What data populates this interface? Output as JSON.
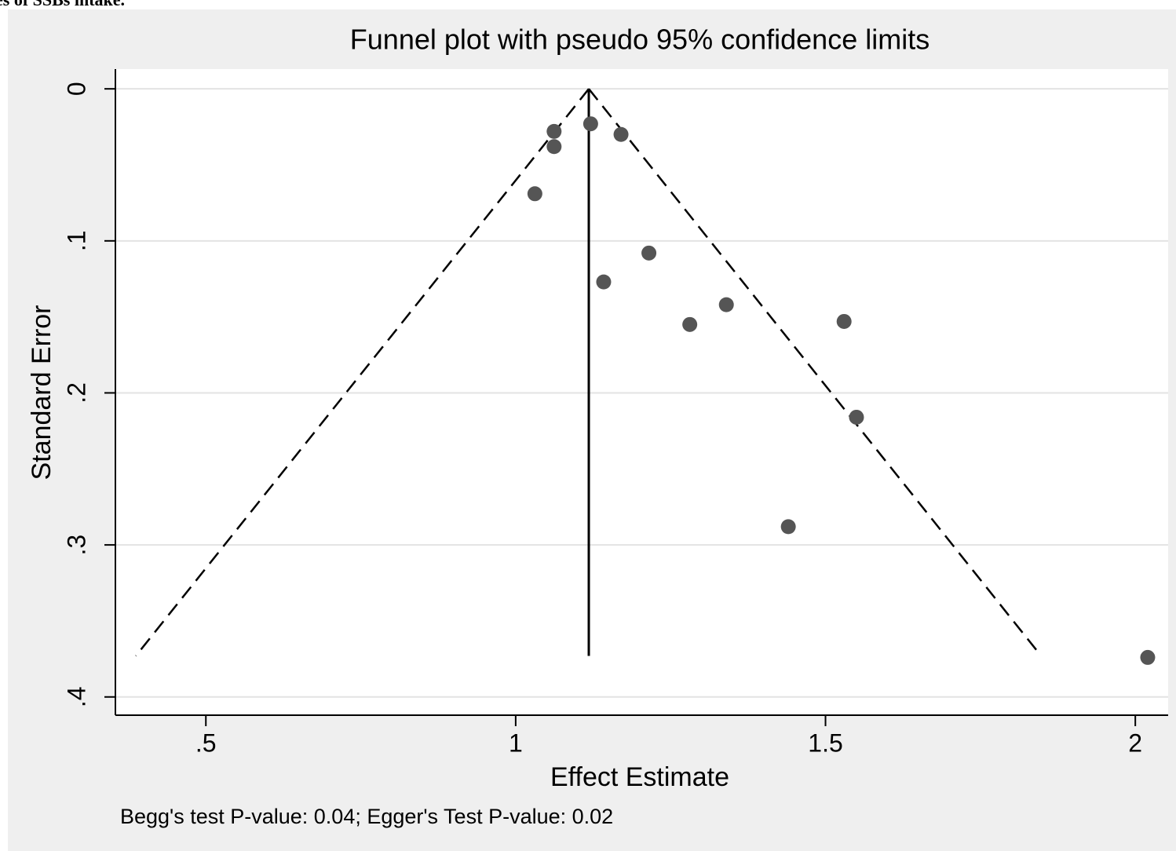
{
  "caption": "es of SSBs intake.",
  "chart_data": {
    "type": "scatter",
    "title": "Funnel plot with pseudo 95% confidence limits",
    "xlabel": "Effect Estimate",
    "ylabel": "Standard Error",
    "note": "Begg's test P-value: 0.04; Egger's Test P-value: 0.02",
    "x": [
      1.062,
      1.062,
      1.121,
      1.17,
      1.031,
      1.215,
      1.142,
      1.281,
      1.34,
      1.53,
      1.55,
      1.44,
      2.02
    ],
    "y": [
      0.028,
      0.038,
      0.023,
      0.03,
      0.069,
      0.108,
      0.127,
      0.155,
      0.142,
      0.153,
      0.216,
      0.288,
      0.374
    ],
    "color": "#555555",
    "pooled_estimate": 1.118,
    "funnel": {
      "se_max": 0.373,
      "lower": 0.387,
      "upper": 1.848
    },
    "xlim": [
      0.354,
      2.053
    ],
    "ylim": [
      -0.013,
      0.412
    ],
    "y_reversed": true,
    "xticks": [
      {
        "value": 0.5,
        "label": ".5"
      },
      1,
      1.5,
      2
    ],
    "yticks": [
      0,
      {
        "value": 0.1,
        "label": ".1"
      },
      {
        "value": 0.2,
        "label": ".2"
      },
      {
        "value": 0.3,
        "label": ".3"
      },
      {
        "value": 0.4,
        "label": ".4"
      }
    ],
    "grid": true
  }
}
